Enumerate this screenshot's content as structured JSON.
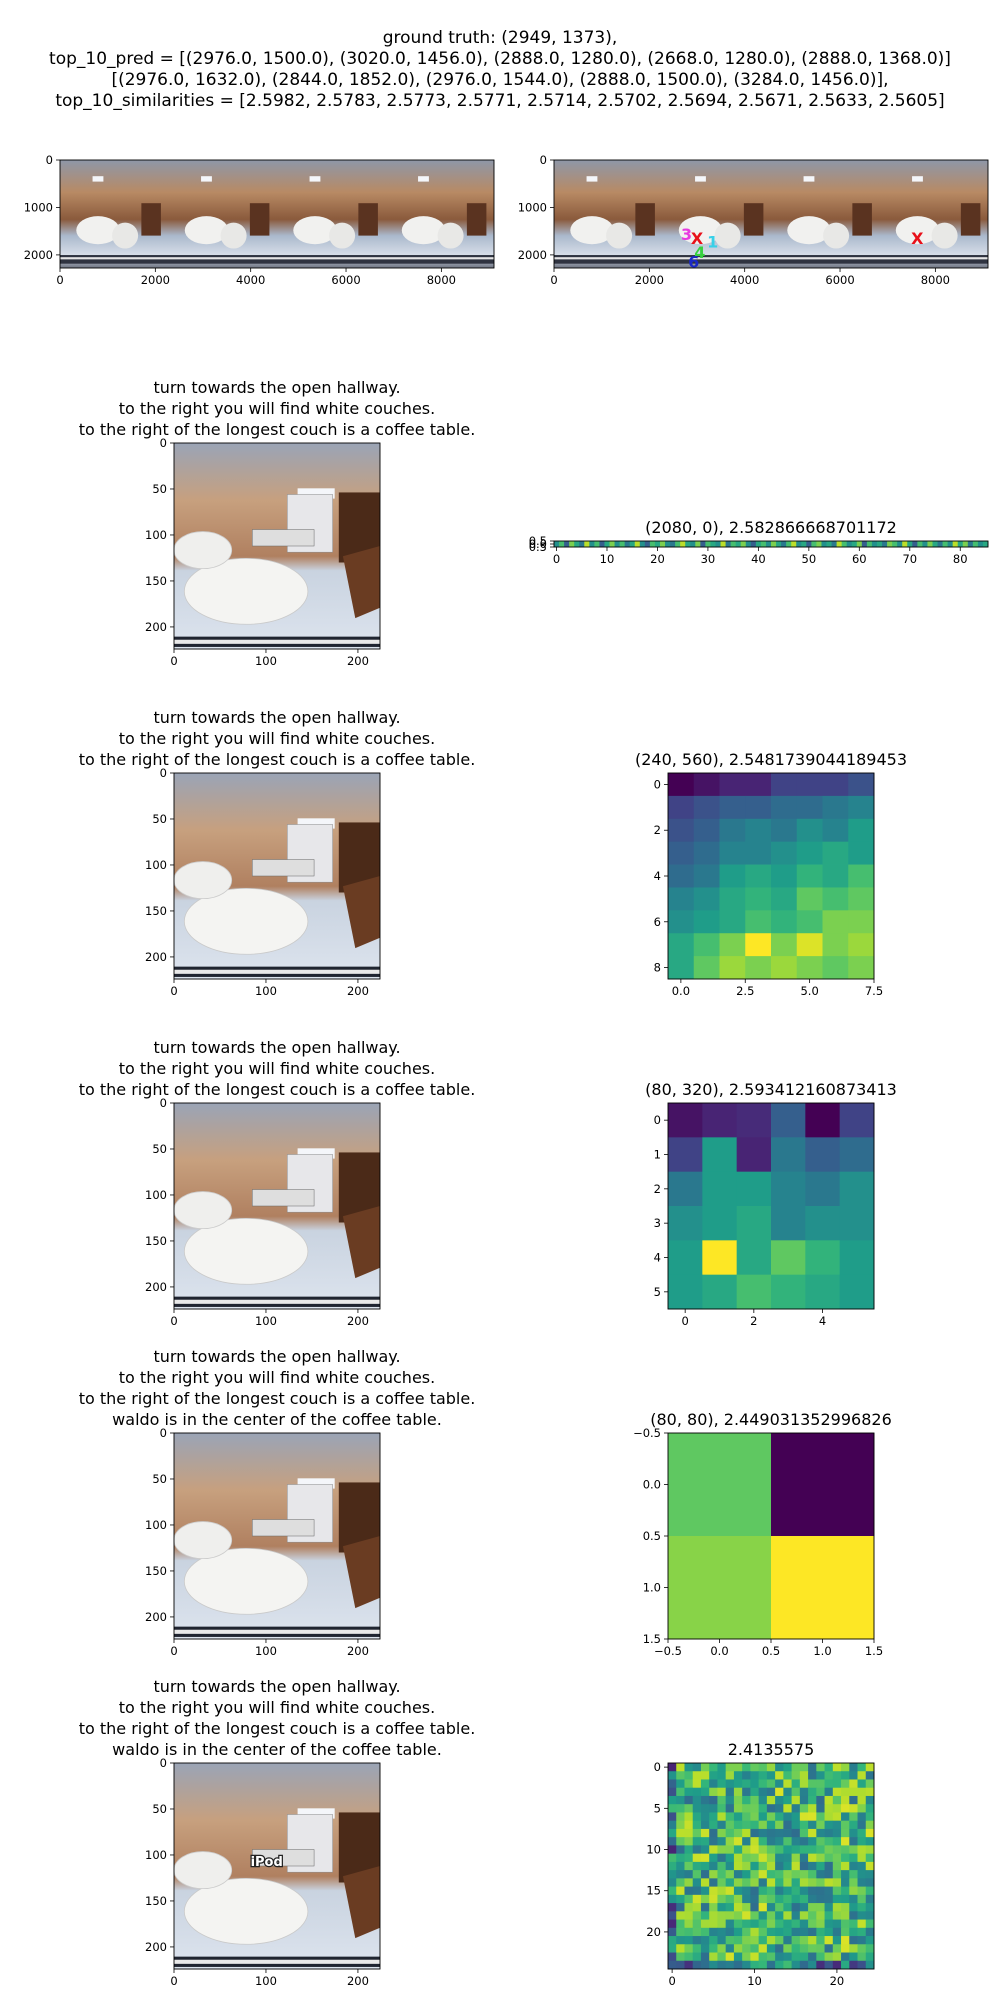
{
  "header": {
    "line1": "ground truth: (2949, 1373),",
    "line2": "top_10_pred = [(2976.0, 1500.0), (3020.0, 1456.0), (2888.0, 1280.0), (2668.0, 1280.0), (2888.0, 1368.0)]",
    "line3": "[(2976.0, 1632.0), (2844.0, 1852.0), (2976.0, 1544.0), (2888.0, 1500.0), (3284.0, 1456.0)],",
    "line4": "top_10_similarities = [2.5982, 2.5783, 2.5773, 2.5771, 2.5714, 2.5702, 2.5694, 2.5671, 2.5633, 2.5605]"
  },
  "chart_data": [
    {
      "id": "pano-left",
      "type": "image",
      "image": "panorama",
      "xticks": [
        0,
        2000,
        4000,
        6000,
        8000
      ],
      "yticks": [
        0,
        1000,
        2000
      ],
      "xlim": [
        0,
        9104
      ],
      "ylim": [
        2276,
        0
      ]
    },
    {
      "id": "pano-right",
      "type": "image",
      "image": "panorama",
      "xticks": [
        0,
        2000,
        4000,
        6000,
        8000
      ],
      "yticks": [
        0,
        1000,
        2000
      ],
      "xlim": [
        0,
        9104
      ],
      "ylim": [
        2276,
        0
      ],
      "markers": [
        {
          "label": "3",
          "x": 2780,
          "y": 1560,
          "color": "#e83ae0"
        },
        {
          "label": "X",
          "x": 3000,
          "y": 1640,
          "color": "#e8101a"
        },
        {
          "label": "X",
          "x": 7620,
          "y": 1640,
          "color": "#e8101a"
        },
        {
          "label": "1",
          "x": 3330,
          "y": 1720,
          "color": "#38d0e8"
        },
        {
          "label": "4",
          "x": 3060,
          "y": 1940,
          "color": "#38d040"
        },
        {
          "label": "6",
          "x": 2930,
          "y": 2140,
          "color": "#1a28c8"
        }
      ]
    },
    {
      "id": "crop-1",
      "type": "image",
      "image": "room",
      "title": [
        "turn towards the open hallway.",
        "to the right you will find white couches.",
        "to the right of the longest couch is a coffee table."
      ],
      "xticks": [
        0,
        100,
        200
      ],
      "yticks": [
        0,
        50,
        100,
        150,
        200
      ],
      "xlim": [
        0,
        224
      ],
      "ylim": [
        224,
        0
      ]
    },
    {
      "id": "heat-1",
      "type": "heatmap",
      "title": "(2080, 0), 2.582866668701172",
      "rows": 1,
      "cols": 86,
      "xticks": [
        0,
        10,
        20,
        30,
        40,
        50,
        60,
        70,
        80
      ],
      "yticks": [
        "0.5",
        "0.0",
        "0.5"
      ],
      "values": [
        [
          0.5,
          0.7,
          0.3,
          0.8,
          0.6,
          0.4,
          0.9,
          0.5,
          0.7,
          0.3,
          0.6,
          0.8,
          0.5,
          0.7,
          0.4,
          0.6,
          0.9,
          0.5,
          0.3,
          0.7,
          0.6,
          0.8,
          0.5,
          0.4,
          0.7,
          0.9,
          0.6,
          0.5,
          0.8,
          0.3,
          0.7,
          0.6,
          0.5,
          0.9,
          0.4,
          0.7,
          0.6,
          0.8,
          0.5,
          0.3,
          0.6,
          0.7,
          0.5,
          0.8,
          0.6,
          0.4,
          0.7,
          0.9,
          0.5,
          0.6,
          0.3,
          0.7,
          0.8,
          0.5,
          0.6,
          0.4,
          0.9,
          0.7,
          0.5,
          0.6,
          0.8,
          0.3,
          0.7,
          0.5,
          0.6,
          0.4,
          0.8,
          0.7,
          0.5,
          0.9,
          0.6,
          0.3,
          0.7,
          0.5,
          0.8,
          0.6,
          0.4,
          0.7,
          0.5,
          0.9,
          0.6,
          0.8,
          0.4,
          0.7,
          0.5,
          0.6
        ]
      ]
    },
    {
      "id": "crop-2",
      "type": "image",
      "image": "room",
      "title": [
        "turn towards the open hallway.",
        "to the right you will find white couches.",
        "to the right of the longest couch is a coffee table."
      ],
      "xticks": [
        0,
        100,
        200
      ],
      "yticks": [
        0,
        50,
        100,
        150,
        200
      ],
      "xlim": [
        0,
        224
      ],
      "ylim": [
        224,
        0
      ]
    },
    {
      "id": "heat-2",
      "type": "heatmap",
      "title": "(240, 560), 2.5481739044189453",
      "rows": 9,
      "cols": 8,
      "xticks": [
        0,
        2.5,
        5,
        7.5
      ],
      "xtickLabels": [
        "0.0",
        "2.5",
        "5.0",
        "7.5"
      ],
      "yticks": [
        0,
        2,
        4,
        6,
        8
      ],
      "values": [
        [
          0.0,
          0.05,
          0.1,
          0.1,
          0.2,
          0.2,
          0.2,
          0.25
        ],
        [
          0.2,
          0.25,
          0.3,
          0.3,
          0.35,
          0.35,
          0.4,
          0.45
        ],
        [
          0.25,
          0.3,
          0.4,
          0.45,
          0.4,
          0.5,
          0.45,
          0.55
        ],
        [
          0.3,
          0.35,
          0.45,
          0.45,
          0.5,
          0.55,
          0.6,
          0.55
        ],
        [
          0.35,
          0.4,
          0.55,
          0.6,
          0.55,
          0.65,
          0.6,
          0.7
        ],
        [
          0.45,
          0.5,
          0.6,
          0.65,
          0.6,
          0.75,
          0.7,
          0.75
        ],
        [
          0.5,
          0.55,
          0.6,
          0.7,
          0.65,
          0.7,
          0.8,
          0.8
        ],
        [
          0.6,
          0.7,
          0.8,
          1.0,
          0.8,
          0.95,
          0.8,
          0.85
        ],
        [
          0.6,
          0.75,
          0.85,
          0.8,
          0.85,
          0.8,
          0.75,
          0.8
        ]
      ]
    },
    {
      "id": "crop-3",
      "type": "image",
      "image": "room",
      "title": [
        "turn towards the open hallway.",
        "to the right you will find white couches.",
        "to the right of the longest couch is a coffee table."
      ],
      "xticks": [
        0,
        100,
        200
      ],
      "yticks": [
        0,
        50,
        100,
        150,
        200
      ],
      "xlim": [
        0,
        224
      ],
      "ylim": [
        224,
        0
      ]
    },
    {
      "id": "heat-3",
      "type": "heatmap",
      "title": "(80, 320), 2.593412160873413",
      "rows": 6,
      "cols": 6,
      "xticks": [
        0,
        2,
        4
      ],
      "yticks": [
        0,
        1,
        2,
        3,
        4,
        5
      ],
      "values": [
        [
          0.05,
          0.1,
          0.12,
          0.3,
          0.0,
          0.2
        ],
        [
          0.2,
          0.55,
          0.1,
          0.4,
          0.3,
          0.35
        ],
        [
          0.4,
          0.55,
          0.55,
          0.45,
          0.4,
          0.5
        ],
        [
          0.5,
          0.55,
          0.6,
          0.45,
          0.5,
          0.5
        ],
        [
          0.55,
          1.0,
          0.6,
          0.75,
          0.65,
          0.55
        ],
        [
          0.55,
          0.6,
          0.7,
          0.65,
          0.6,
          0.55
        ]
      ]
    },
    {
      "id": "crop-4",
      "type": "image",
      "image": "room",
      "title": [
        "turn towards the open hallway.",
        "to the right you will find white couches.",
        "to the right of the longest couch is a coffee table.",
        "waldo is in the center of the coffee table."
      ],
      "xticks": [
        0,
        100,
        200
      ],
      "yticks": [
        0,
        50,
        100,
        150,
        200
      ],
      "xlim": [
        0,
        224
      ],
      "ylim": [
        224,
        0
      ]
    },
    {
      "id": "heat-4",
      "type": "heatmap",
      "title": "(80, 80), 2.449031352996826",
      "rows": 2,
      "cols": 2,
      "xticks": [
        -0.5,
        0,
        0.5,
        1,
        1.5
      ],
      "xtickLabels": [
        "−0.5",
        "0.0",
        "0.5",
        "1.0",
        "1.5"
      ],
      "yticks": [
        -0.5,
        0,
        0.5,
        1,
        1.5
      ],
      "ytickLabels": [
        "−0.5",
        "0.0",
        "0.5",
        "1.0",
        "1.5"
      ],
      "values": [
        [
          0.75,
          0.0
        ],
        [
          0.82,
          1.0
        ]
      ]
    },
    {
      "id": "crop-5",
      "type": "image",
      "image": "room",
      "overlay": "iPod",
      "title": [
        "turn towards the open hallway.",
        "to the right you will find white couches.",
        "to the right of the longest couch is a coffee table.",
        "waldo is in the center of the coffee table."
      ],
      "xticks": [
        0,
        100,
        200
      ],
      "yticks": [
        0,
        50,
        100,
        150,
        200
      ],
      "xlim": [
        0,
        224
      ],
      "ylim": [
        224,
        0
      ]
    },
    {
      "id": "heat-5",
      "type": "heatmap",
      "title": "2.4135575",
      "rows": 25,
      "cols": 25,
      "xticks": [
        0,
        10,
        20
      ],
      "yticks": [
        0,
        5,
        10,
        15,
        20
      ],
      "random": true
    }
  ]
}
